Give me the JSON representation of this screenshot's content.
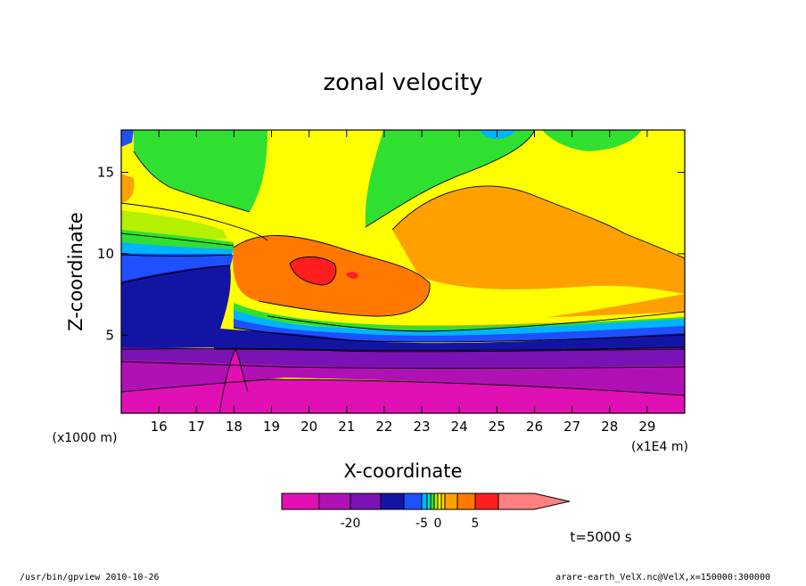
{
  "chart_data": {
    "type": "heatmap",
    "title": "zonal velocity",
    "xlabel": "X-coordinate",
    "ylabel": "Z-coordinate",
    "x_unit_label": "(x1E4 m)",
    "y_unit_label": "(x1000 m)",
    "x_ticks": [
      16,
      17,
      18,
      19,
      20,
      21,
      22,
      23,
      24,
      25,
      26,
      27,
      28,
      29
    ],
    "y_ticks": [
      5,
      10,
      15
    ],
    "xlim": [
      15,
      30
    ],
    "ylim": [
      0.2,
      17.6
    ],
    "time_label": "t=5000 s",
    "colorbar": {
      "levels": [
        -25,
        -20,
        -15,
        -10,
        -5,
        -3,
        -2,
        -1,
        0,
        1,
        2,
        3,
        5,
        10,
        15
      ],
      "colors": [
        "#e010b4",
        "#b011b4",
        "#7a12b4",
        "#1414a4",
        "#1e50ff",
        "#00b4ff",
        "#00e6c8",
        "#30e030",
        "#b4f000",
        "#ffff00",
        "#ffd200",
        "#ffa000",
        "#ff7800",
        "#ff1e1e",
        "#ff8080"
      ],
      "labels": [
        {
          "text": "-20",
          "value": -20
        },
        {
          "text": "-5",
          "value": -5
        },
        {
          "text": "0",
          "value": 0
        },
        {
          "text": "5",
          "value": 5
        }
      ]
    },
    "field_regions": [
      {
        "level": "lt -20",
        "color": "#e010b4",
        "x": [
          15,
          30
        ],
        "z": [
          0.2,
          2.5
        ],
        "note": "lower layer"
      },
      {
        "level": "-20 to -10",
        "color": "#7a12b4",
        "x": [
          15,
          30
        ],
        "z": [
          2.0,
          4.5
        ]
      },
      {
        "level": "-10 to -5",
        "color": "#1414a4",
        "x": [
          15,
          18
        ],
        "z": [
          4.5,
          9.5
        ]
      },
      {
        "level": "5 to 10",
        "color": "#ffa000",
        "x": [
          18,
          30
        ],
        "z": [
          6,
          12
        ]
      },
      {
        "level": "10 to 15",
        "color": "#ff1e1e",
        "x": [
          19.6,
          20.8
        ],
        "z": [
          8.2,
          9.8
        ],
        "note": "jet core"
      },
      {
        "level": "0 to 1",
        "color": "#ffff00",
        "x": [
          15,
          30
        ],
        "z": [
          12,
          17.6
        ]
      },
      {
        "level": "-2 to 0",
        "color": "#30e030",
        "x": [
          16,
          19
        ],
        "z": [
          11,
          17.6
        ]
      }
    ]
  },
  "footer": {
    "left": "/usr/bin/gpview   2010-10-26",
    "right": "arare-earth_VelX.nc@VelX,x=150000:300000"
  }
}
